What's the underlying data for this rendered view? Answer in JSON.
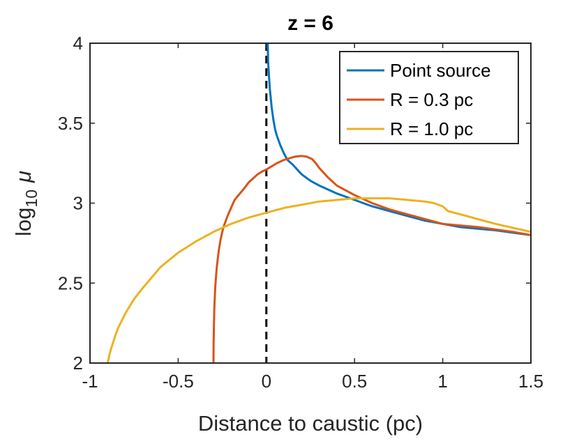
{
  "chart_data": {
    "type": "line",
    "title": "z = 6",
    "xlabel": "Distance to caustic (pc)",
    "ylabel": {
      "base": "log",
      "subscript": "10",
      "symbol": "μ"
    },
    "xlim": [
      -1,
      1.5
    ],
    "ylim": [
      2,
      4
    ],
    "xticks": [
      -1,
      -0.5,
      0,
      0.5,
      1,
      1.5
    ],
    "xtick_labels": [
      "-1",
      "-0.5",
      "0",
      "0.5",
      "1",
      "1.5"
    ],
    "yticks": [
      2,
      2.5,
      3,
      3.5,
      4
    ],
    "ytick_labels": [
      "2",
      "2.5",
      "3",
      "3.5",
      "4"
    ],
    "grid": false,
    "legend_position": "top-right",
    "caustic_marker": {
      "x": 0,
      "style": "dashed",
      "color": "#000000"
    },
    "series": [
      {
        "name": "Point source",
        "color": "#0072BD",
        "x": [
          0.008,
          0.01,
          0.015,
          0.02,
          0.03,
          0.04,
          0.05,
          0.06,
          0.08,
          0.1,
          0.12,
          0.15,
          0.2,
          0.25,
          0.3,
          0.4,
          0.5,
          0.6,
          0.7,
          0.8,
          0.9,
          1.0,
          1.1,
          1.2,
          1.3,
          1.4,
          1.5
        ],
        "y": [
          4.0,
          3.89,
          3.79,
          3.71,
          3.6,
          3.52,
          3.46,
          3.42,
          3.36,
          3.31,
          3.27,
          3.24,
          3.18,
          3.14,
          3.11,
          3.06,
          3.02,
          2.98,
          2.95,
          2.92,
          2.89,
          2.87,
          2.85,
          2.84,
          2.83,
          2.815,
          2.8
        ]
      },
      {
        "name": "R = 0.3 pc",
        "color": "#D95319",
        "x": [
          -0.3,
          -0.299,
          -0.297,
          -0.295,
          -0.29,
          -0.285,
          -0.28,
          -0.27,
          -0.26,
          -0.25,
          -0.24,
          -0.22,
          -0.2,
          -0.18,
          -0.15,
          -0.12,
          -0.1,
          -0.08,
          -0.05,
          -0.02,
          0.0,
          0.03,
          0.06,
          0.1,
          0.13,
          0.16,
          0.2,
          0.23,
          0.26,
          0.28,
          0.3,
          0.35,
          0.4,
          0.5,
          0.6,
          0.7,
          0.8,
          0.9,
          1.0,
          1.2,
          1.4,
          1.5
        ],
        "y": [
          2.0,
          2.12,
          2.25,
          2.34,
          2.47,
          2.55,
          2.61,
          2.7,
          2.77,
          2.82,
          2.86,
          2.92,
          2.97,
          3.02,
          3.06,
          3.1,
          3.13,
          3.15,
          3.18,
          3.2,
          3.21,
          3.23,
          3.25,
          3.27,
          3.28,
          3.29,
          3.295,
          3.29,
          3.275,
          3.25,
          3.22,
          3.16,
          3.11,
          3.05,
          3.0,
          2.96,
          2.93,
          2.9,
          2.87,
          2.85,
          2.82,
          2.8
        ]
      },
      {
        "name": "R = 1.0 pc",
        "color": "#EDB120",
        "x": [
          -0.9,
          -0.89,
          -0.88,
          -0.86,
          -0.84,
          -0.8,
          -0.75,
          -0.7,
          -0.6,
          -0.5,
          -0.4,
          -0.3,
          -0.2,
          -0.1,
          0.0,
          0.1,
          0.2,
          0.3,
          0.4,
          0.5,
          0.55,
          0.6,
          0.7,
          0.8,
          0.9,
          0.95,
          1.0,
          1.03,
          1.1,
          1.2,
          1.3,
          1.4,
          1.5
        ],
        "y": [
          2.0,
          2.05,
          2.09,
          2.16,
          2.22,
          2.31,
          2.4,
          2.47,
          2.6,
          2.69,
          2.76,
          2.82,
          2.87,
          2.91,
          2.94,
          2.97,
          2.99,
          3.01,
          3.02,
          3.03,
          3.03,
          3.03,
          3.03,
          3.02,
          3.01,
          3.0,
          2.98,
          2.95,
          2.93,
          2.9,
          2.87,
          2.845,
          2.82
        ]
      }
    ]
  }
}
